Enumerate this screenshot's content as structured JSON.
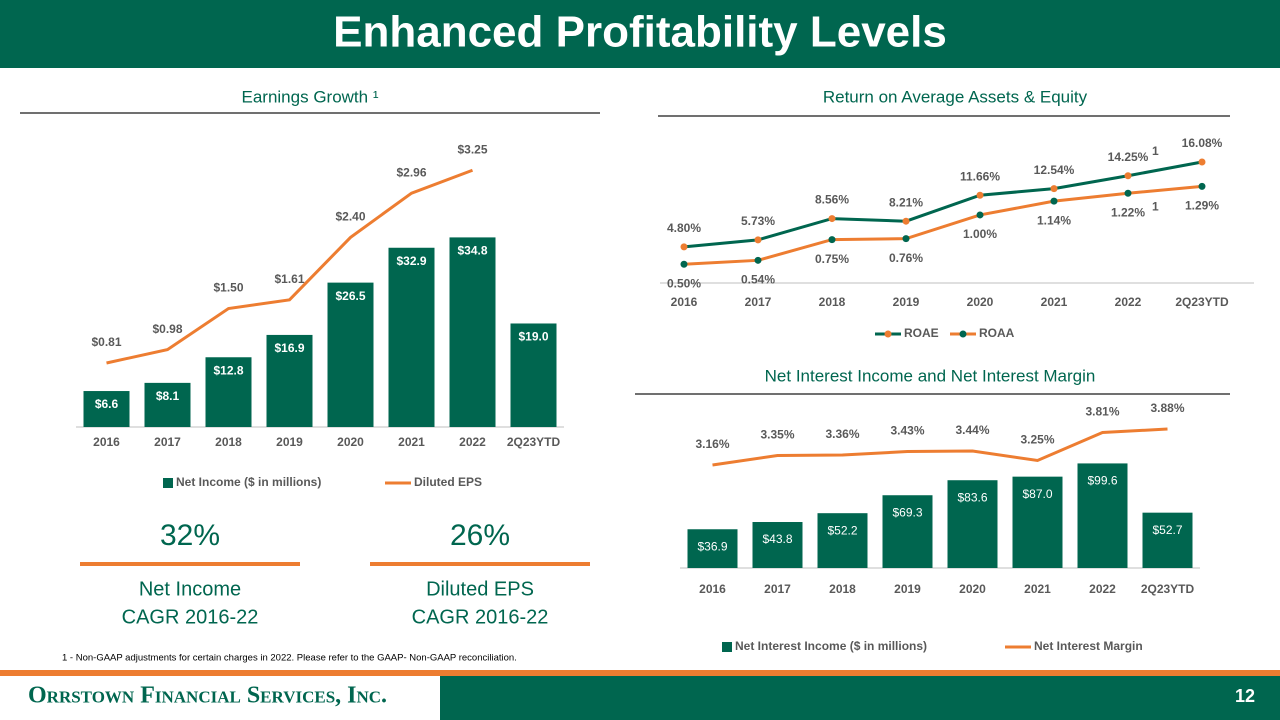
{
  "title": "Enhanced Profitability Levels",
  "footnote": "1 - Non-GAAP adjustments for certain charges in 2022. Please refer to the GAAP- Non-GAAP reconciliation.",
  "company": "Orrstown Financial Services, Inc.",
  "page_number": "12",
  "stats": [
    {
      "value": "32%",
      "lines": [
        "Net Income",
        "CAGR 2016-22"
      ]
    },
    {
      "value": "26%",
      "lines": [
        "Diluted EPS",
        "CAGR 2016-22"
      ]
    }
  ],
  "chart_data": [
    {
      "type": "combo",
      "title": "Earnings Growth ¹",
      "categories": [
        "2016",
        "2017",
        "2018",
        "2019",
        "2020",
        "2021",
        "2022",
        "2Q23YTD"
      ],
      "ylim": [
        0,
        58
      ],
      "y2lim": [
        0,
        4
      ],
      "series": [
        {
          "name": "Net Income ($ in millions)",
          "type": "bar",
          "color": "#00664f",
          "values": [
            6.6,
            8.1,
            12.8,
            16.9,
            26.5,
            32.9,
            34.8,
            19.0
          ],
          "value_labels": [
            "$6.6",
            "$8.1",
            "$12.8",
            "$16.9",
            "$26.5",
            "$32.9",
            "$34.8",
            "$19.0"
          ]
        },
        {
          "name": "Diluted EPS",
          "type": "line",
          "axis": "y2",
          "color": "#ed7d31",
          "values": [
            0.81,
            0.98,
            1.5,
            1.61,
            2.4,
            2.96,
            3.25,
            null
          ],
          "value_labels": [
            "$0.81",
            "$0.98",
            "$1.50",
            "$1.61",
            "$2.40",
            "$2.96",
            "$3.25",
            null
          ]
        }
      ]
    },
    {
      "type": "line",
      "title": "Return on Average Assets & Equity",
      "categories": [
        "2016",
        "2017",
        "2018",
        "2019",
        "2020",
        "2021",
        "2022",
        "2Q23YTD"
      ],
      "ylim": [
        0,
        19
      ],
      "y2lim": [
        0.31,
        1.76
      ],
      "annotations": [
        "1",
        "1"
      ],
      "series": [
        {
          "name": "ROAE",
          "type": "line",
          "color": "#00664f",
          "marker_color": "#ed7d31",
          "values": [
            4.8,
            5.73,
            8.56,
            8.21,
            11.66,
            12.54,
            14.25,
            16.08
          ],
          "value_labels": [
            "4.80%",
            "5.73%",
            "8.56%",
            "8.21%",
            "11.66%",
            "12.54%",
            "14.25%",
            "16.08%"
          ]
        },
        {
          "name": "ROAA",
          "type": "line",
          "axis": "y2",
          "color": "#ed7d31",
          "marker_color": "#00664f",
          "values": [
            0.5,
            0.54,
            0.75,
            0.76,
            1.0,
            1.14,
            1.22,
            1.29
          ],
          "value_labels": [
            "0.50%",
            "0.54%",
            "0.75%",
            "0.76%",
            "1.00%",
            "1.14%",
            "1.22%",
            "1.29%"
          ]
        }
      ]
    },
    {
      "type": "combo",
      "title": "Net Interest Income and Net Interest Margin",
      "categories": [
        "2016",
        "2017",
        "2018",
        "2019",
        "2020",
        "2021",
        "2022",
        "2Q23YTD"
      ],
      "ylim": [
        0,
        160
      ],
      "y2lim": [
        1.1,
        4.46
      ],
      "series": [
        {
          "name": "Net Interest Income ($ in millions)",
          "type": "bar",
          "color": "#00664f",
          "values": [
            36.9,
            43.8,
            52.2,
            69.3,
            83.6,
            87.0,
            99.6,
            52.7
          ],
          "value_labels": [
            "$36.9",
            "$43.8",
            "$52.2",
            "$69.3",
            "$83.6",
            "$87.0",
            "$99.6",
            "$52.7"
          ]
        },
        {
          "name": "Net Interest Margin",
          "type": "line",
          "axis": "y2",
          "color": "#ed7d31",
          "values": [
            3.16,
            3.35,
            3.36,
            3.43,
            3.44,
            3.25,
            3.81,
            3.88
          ],
          "value_labels": [
            "3.16%",
            "3.35%",
            "3.36%",
            "3.43%",
            "3.44%",
            "3.25%",
            "3.81%",
            "3.88%"
          ]
        }
      ]
    }
  ]
}
